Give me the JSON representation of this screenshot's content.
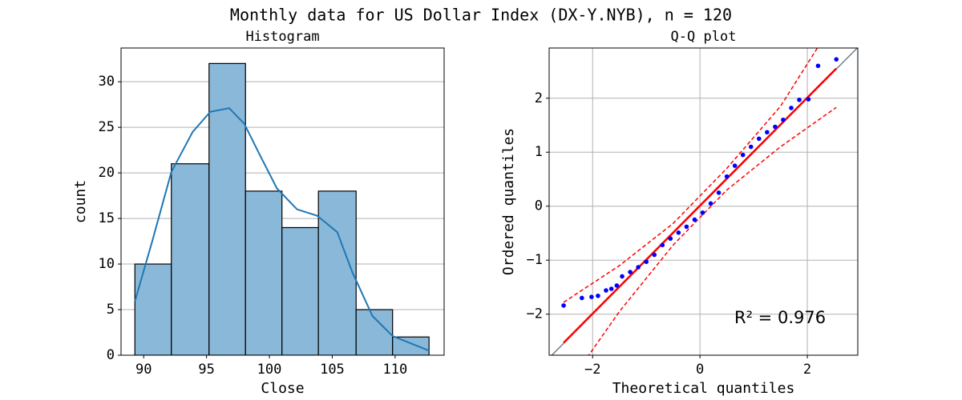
{
  "title": "Monthly data for US Dollar Index (DX-Y.NYB), n = 120",
  "chart_data": [
    {
      "type": "histogram",
      "title": "Histogram",
      "x_label": "Close",
      "y_label": "count",
      "bins": [
        89.3,
        92.2,
        95.2,
        98.1,
        101.0,
        103.9,
        106.9,
        109.8,
        112.7
      ],
      "values": [
        10,
        21,
        32,
        18,
        14,
        18,
        5,
        2
      ],
      "color": "#8ab8d9",
      "edge_color": "#000000",
      "kde": {
        "x": [
          89.3,
          90.7,
          92.2,
          93.9,
          95.3,
          96.8,
          98.0,
          99.3,
          100.6,
          102.2,
          103.8,
          105.4,
          106.6,
          108.2,
          109.8,
          112.7
        ],
        "values": [
          5.9,
          12.6,
          20.1,
          24.5,
          26.7,
          27.1,
          25.4,
          21.8,
          18.3,
          16.0,
          15.3,
          13.5,
          9.1,
          4.3,
          2.1,
          0.5
        ],
        "color": "#1f77b4"
      },
      "xlim": [
        88.2,
        113.9
      ],
      "ylim": [
        0,
        33.7
      ],
      "xticks": [
        90,
        95,
        100,
        105,
        110
      ],
      "yticks": [
        0,
        5,
        10,
        15,
        20,
        25,
        30
      ],
      "grid": "y"
    },
    {
      "type": "qq",
      "title": "Q-Q plot",
      "x_label": "Theoretical quantiles",
      "y_label": "Ordered quantiles",
      "annotation": "R² = 0.976",
      "points": {
        "x": [
          -2.54,
          -2.2,
          -2.02,
          -1.9,
          -1.75,
          -1.65,
          -1.55,
          -1.45,
          -1.3,
          -1.15,
          -1.0,
          -0.85,
          -0.7,
          -0.55,
          -0.4,
          -0.25,
          -0.1,
          0.05,
          0.2,
          0.35,
          0.5,
          0.65,
          0.8,
          0.95,
          1.1,
          1.25,
          1.4,
          1.55,
          1.7,
          1.85,
          2.02,
          2.2,
          2.54
        ],
        "values": [
          -1.84,
          -1.7,
          -1.68,
          -1.66,
          -1.56,
          -1.53,
          -1.47,
          -1.3,
          -1.22,
          -1.13,
          -1.03,
          -0.9,
          -0.72,
          -0.6,
          -0.49,
          -0.38,
          -0.25,
          -0.12,
          0.05,
          0.25,
          0.55,
          0.75,
          0.95,
          1.1,
          1.25,
          1.37,
          1.47,
          1.6,
          1.82,
          1.97,
          1.98,
          2.6,
          2.72
        ],
        "color": "#0000ff"
      },
      "fit": {
        "x": [
          -2.54,
          2.54
        ],
        "values": [
          -2.53,
          2.55
        ],
        "color": "#ff0000"
      },
      "upper": {
        "x": [
          -2.54,
          -1.5,
          -0.5,
          0.5,
          1.5,
          2.2
        ],
        "values": [
          -1.78,
          -1.1,
          -0.32,
          0.7,
          1.85,
          2.95
        ],
        "color": "#ff0000"
      },
      "lower": {
        "x": [
          -2.1,
          -1.5,
          -0.5,
          0.5,
          1.5,
          2.54
        ],
        "values": [
          -2.8,
          -1.95,
          -0.72,
          0.3,
          1.1,
          1.83
        ],
        "color": "#ff0000"
      },
      "reference": {
        "x": [
          -3,
          3
        ],
        "values": [
          -3,
          3
        ],
        "color": "#708090"
      },
      "xlim": [
        -2.81,
        2.94
      ],
      "ylim": [
        -2.76,
        2.93
      ],
      "xticks": [
        {
          "value": -2,
          "label": "−2"
        },
        0,
        2
      ],
      "yticks": [
        {
          "value": -2,
          "label": "−2"
        },
        {
          "value": -1,
          "label": "−1"
        },
        0,
        1,
        2
      ],
      "grid": "both"
    }
  ]
}
